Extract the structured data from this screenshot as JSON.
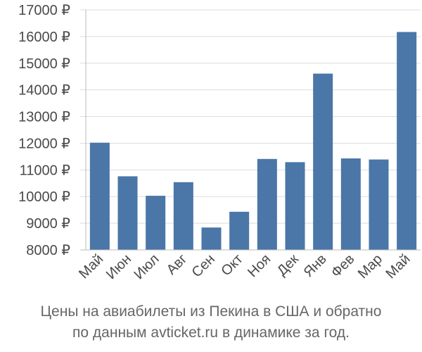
{
  "chart_data": {
    "type": "bar",
    "categories": [
      "Май",
      "Июн",
      "Июл",
      "Авг",
      "Сен",
      "Окт",
      "Ноя",
      "Дек",
      "Янв",
      "Фев",
      "Мар",
      "Май"
    ],
    "values": [
      12020,
      10760,
      10030,
      10540,
      8840,
      9430,
      11410,
      11290,
      14610,
      11430,
      11390,
      16170
    ],
    "ylim": [
      8000,
      17000
    ],
    "yticks": [
      8000,
      9000,
      10000,
      11000,
      12000,
      13000,
      14000,
      15000,
      16000,
      17000
    ],
    "y_unit": "₽",
    "grid": true,
    "bar_color": "#4a76a8",
    "grid_color": "#dddddd",
    "axis_color": "#bbbbbb"
  },
  "caption": {
    "line1": "Цены на авиабилеты из Пекина в США и обратно",
    "line2": "по данным avticket.ru в динамике за год."
  }
}
